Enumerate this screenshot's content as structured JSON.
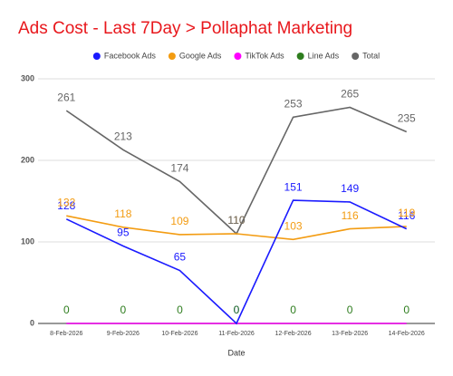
{
  "chart_data": {
    "type": "line",
    "title": "Ads Cost - Last 7Day > Pollaphat Marketing",
    "x_label": "Date",
    "categories": [
      "8-Feb-2026",
      "9-Feb-2026",
      "10-Feb-2026",
      "11-Feb-2026",
      "12-Feb-2026",
      "13-Feb-2026",
      "14-Feb-2026"
    ],
    "series": [
      {
        "name": "Facebook Ads",
        "color": "#1a1aff",
        "values": [
          128,
          95,
          65,
          0,
          151,
          149,
          116
        ],
        "labels": true
      },
      {
        "name": "Google Ads",
        "color": "#f39c12",
        "values": [
          132,
          118,
          109,
          110,
          103,
          116,
          119
        ],
        "labels": true
      },
      {
        "name": "TikTok Ads",
        "color": "#ff00ff",
        "values": [
          0,
          0,
          0,
          0,
          0,
          0,
          0
        ],
        "labels": false
      },
      {
        "name": "Line Ads",
        "color": "#2e7d1e",
        "values": [
          0,
          0,
          0,
          0,
          0,
          0,
          0
        ],
        "labels": true
      },
      {
        "name": "Total",
        "color": "#666666",
        "values": [
          261,
          213,
          174,
          110,
          253,
          265,
          235
        ],
        "labels": true
      }
    ],
    "ylim": [
      0,
      300
    ],
    "yticks": [
      0,
      100,
      200,
      300
    ],
    "grid": true,
    "legend": "top",
    "title_color": "#e8171c"
  }
}
